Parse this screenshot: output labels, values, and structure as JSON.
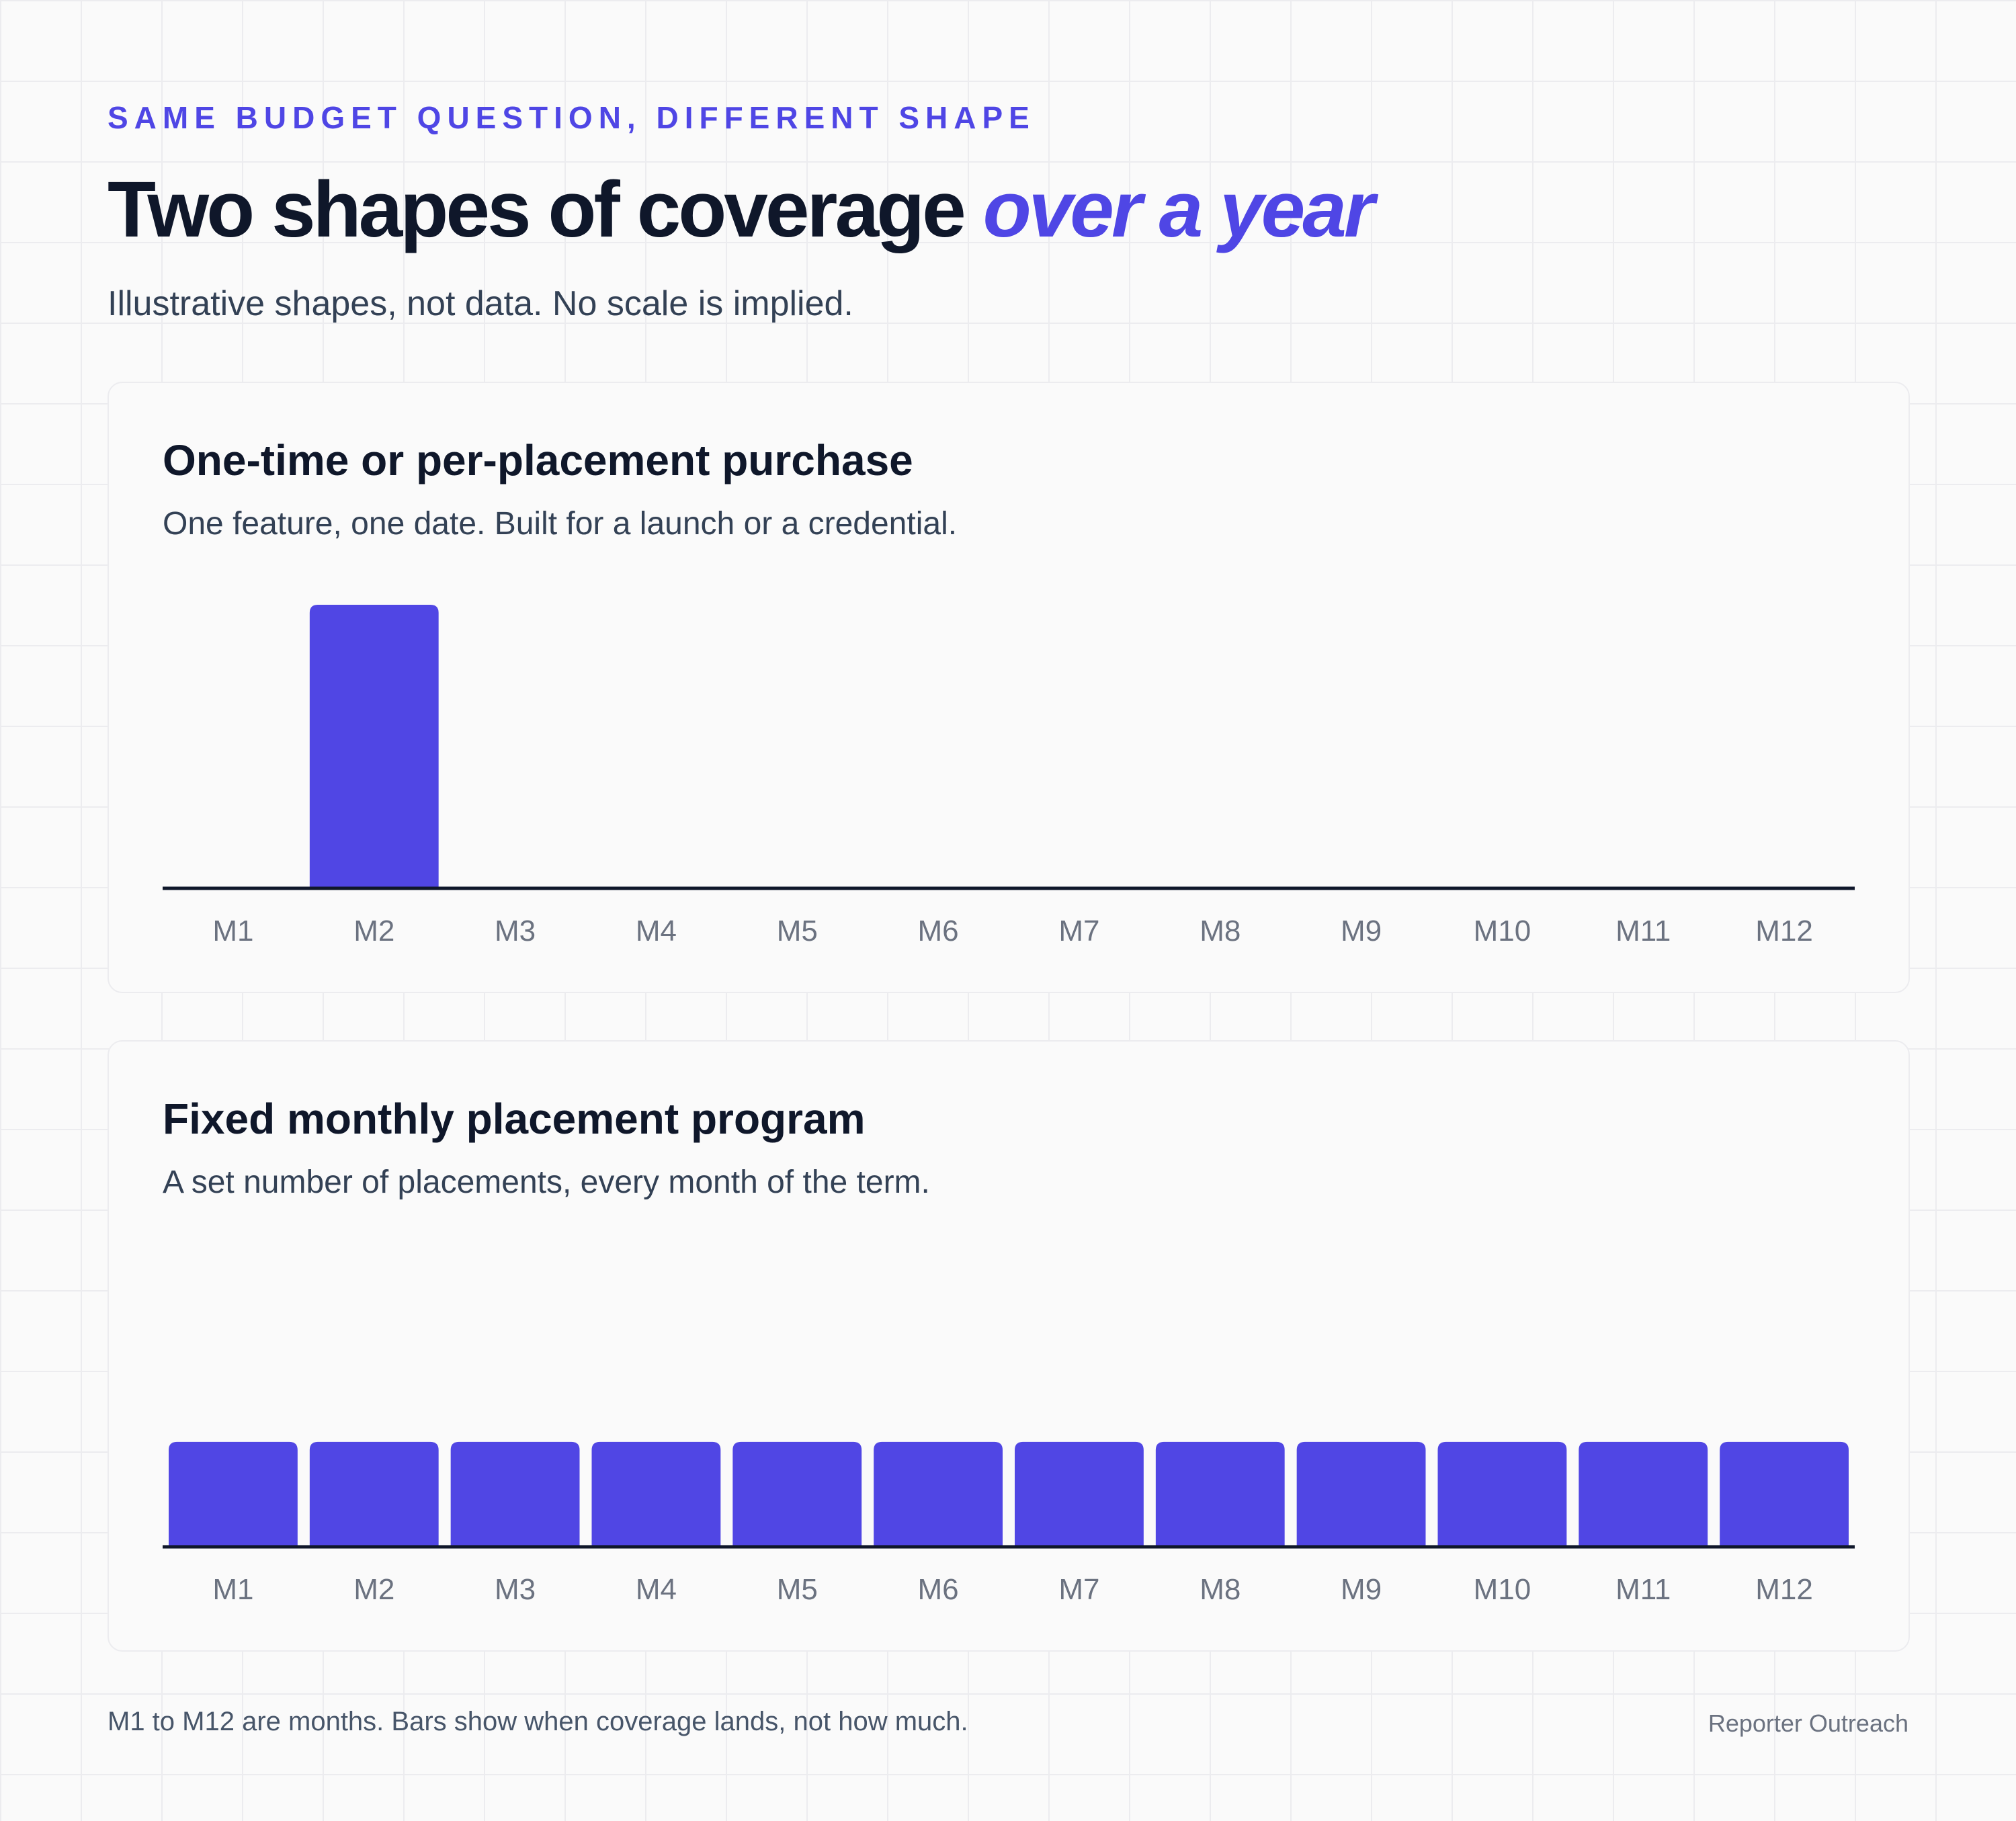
{
  "header": {
    "eyebrow": "SAME BUDGET QUESTION, DIFFERENT SHAPE",
    "title_main": "Two shapes of coverage",
    "title_accent": "over a year",
    "subtitle": "Illustrative shapes, not data. No scale is implied."
  },
  "colors": {
    "accent": "#4f46e5",
    "bar": "#5046e4",
    "axis": "#0f172a",
    "tick_label": "#6b7280"
  },
  "chart_data": [
    {
      "type": "bar",
      "title": "One-time or per-placement purchase",
      "subtitle": "One feature, one date. Built for a launch or a credential.",
      "categories": [
        "M1",
        "M2",
        "M3",
        "M4",
        "M5",
        "M6",
        "M7",
        "M8",
        "M9",
        "M10",
        "M11",
        "M12"
      ],
      "values": [
        0,
        1,
        0,
        0,
        0,
        0,
        0,
        0,
        0,
        0,
        0,
        0
      ],
      "ylim": [
        0,
        1
      ],
      "grid": false
    },
    {
      "type": "bar",
      "title": "Fixed monthly placement program",
      "subtitle": "A set number of placements, every month of the term.",
      "categories": [
        "M1",
        "M2",
        "M3",
        "M4",
        "M5",
        "M6",
        "M7",
        "M8",
        "M9",
        "M10",
        "M11",
        "M12"
      ],
      "values": [
        0.37,
        0.37,
        0.37,
        0.37,
        0.37,
        0.37,
        0.37,
        0.37,
        0.37,
        0.37,
        0.37,
        0.37
      ],
      "ylim": [
        0,
        1
      ],
      "grid": false
    }
  ],
  "footer": {
    "note": "M1 to M12 are months. Bars show when coverage lands, not how much.",
    "brand": "Reporter Outreach"
  }
}
